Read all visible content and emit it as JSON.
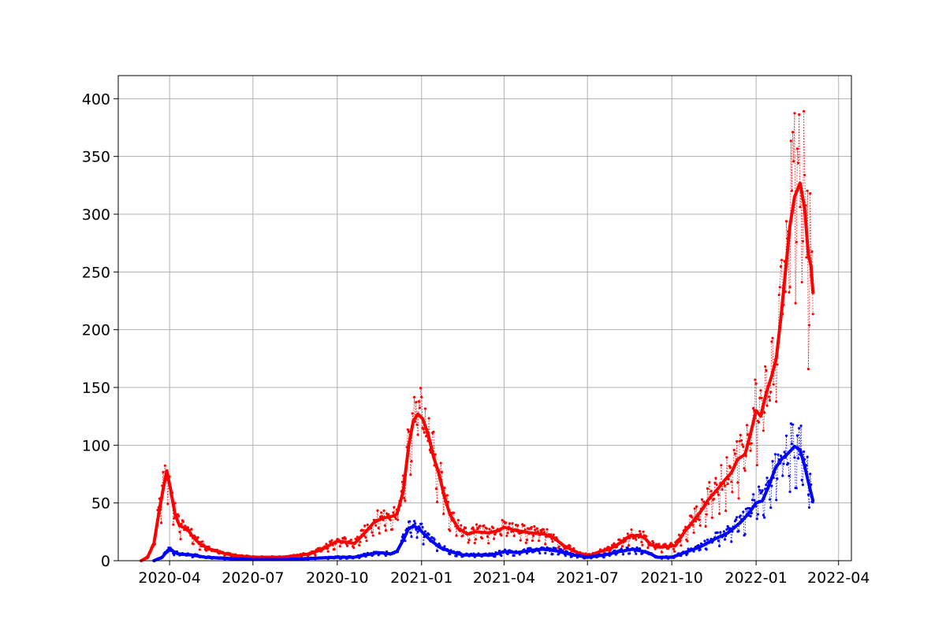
{
  "chart_data": {
    "type": "line",
    "title": "",
    "xlabel": "",
    "ylabel": "",
    "x_axis": {
      "kind": "date",
      "range": [
        "2020-02-05",
        "2022-04-15"
      ],
      "ticks": [
        "2020-04-01",
        "2020-07-01",
        "2020-10-01",
        "2021-01-01",
        "2021-04-01",
        "2021-07-01",
        "2021-10-01",
        "2022-01-01",
        "2022-04-01"
      ],
      "tick_labels": [
        "2020-04",
        "2020-07",
        "2020-10",
        "2021-01",
        "2021-04",
        "2021-07",
        "2021-10",
        "2022-01",
        "2022-04"
      ]
    },
    "y_axis": {
      "range": [
        0,
        420
      ],
      "ticks": [
        0,
        50,
        100,
        150,
        200,
        250,
        300,
        350,
        400
      ],
      "tick_labels": [
        "0",
        "50",
        "100",
        "150",
        "200",
        "250",
        "300",
        "350",
        "400"
      ]
    },
    "grid": true,
    "legend": "none",
    "colors": {
      "series_a": "#ff0000",
      "series_b": "#0000ff",
      "grid": "#b0b0b0"
    },
    "series": [
      {
        "color": "#ff0000",
        "style": "daily values with small dot markers and dotted connecting line, plus thick smoothed line",
        "points": [
          [
            "2020-03-01",
            0
          ],
          [
            "2020-03-08",
            3
          ],
          [
            "2020-03-15",
            15
          ],
          [
            "2020-03-20",
            40
          ],
          [
            "2020-03-25",
            62
          ],
          [
            "2020-03-29",
            78
          ],
          [
            "2020-04-02",
            62
          ],
          [
            "2020-04-07",
            40
          ],
          [
            "2020-04-12",
            30
          ],
          [
            "2020-04-20",
            28
          ],
          [
            "2020-04-27",
            20
          ],
          [
            "2020-05-05",
            14
          ],
          [
            "2020-05-15",
            10
          ],
          [
            "2020-06-01",
            6
          ],
          [
            "2020-06-15",
            4
          ],
          [
            "2020-07-01",
            3
          ],
          [
            "2020-07-15",
            3
          ],
          [
            "2020-08-01",
            3
          ],
          [
            "2020-08-15",
            4
          ],
          [
            "2020-09-01",
            6
          ],
          [
            "2020-09-15",
            10
          ],
          [
            "2020-10-01",
            17
          ],
          [
            "2020-10-10",
            16
          ],
          [
            "2020-10-20",
            15
          ],
          [
            "2020-11-01",
            25
          ],
          [
            "2020-11-10",
            33
          ],
          [
            "2020-11-20",
            37
          ],
          [
            "2020-11-28",
            38
          ],
          [
            "2020-12-05",
            40
          ],
          [
            "2020-12-12",
            60
          ],
          [
            "2020-12-18",
            100
          ],
          [
            "2020-12-23",
            121
          ],
          [
            "2020-12-28",
            127
          ],
          [
            "2021-01-02",
            123
          ],
          [
            "2021-01-08",
            110
          ],
          [
            "2021-01-14",
            90
          ],
          [
            "2021-01-20",
            75
          ],
          [
            "2021-01-26",
            55
          ],
          [
            "2021-02-01",
            40
          ],
          [
            "2021-02-10",
            28
          ],
          [
            "2021-02-20",
            23
          ],
          [
            "2021-03-01",
            25
          ],
          [
            "2021-03-15",
            24
          ],
          [
            "2021-03-25",
            26
          ],
          [
            "2021-04-01",
            29
          ],
          [
            "2021-04-15",
            26
          ],
          [
            "2021-05-01",
            24
          ],
          [
            "2021-05-15",
            23
          ],
          [
            "2021-05-25",
            20
          ],
          [
            "2021-06-05",
            13
          ],
          [
            "2021-06-15",
            9
          ],
          [
            "2021-06-25",
            5
          ],
          [
            "2021-07-05",
            5
          ],
          [
            "2021-07-15",
            8
          ],
          [
            "2021-07-25",
            10
          ],
          [
            "2021-08-05",
            15
          ],
          [
            "2021-08-15",
            21
          ],
          [
            "2021-08-25",
            22
          ],
          [
            "2021-09-01",
            20
          ],
          [
            "2021-09-08",
            14
          ],
          [
            "2021-09-15",
            12
          ],
          [
            "2021-09-25",
            12
          ],
          [
            "2021-10-05",
            13
          ],
          [
            "2021-10-15",
            25
          ],
          [
            "2021-10-25",
            35
          ],
          [
            "2021-11-01",
            42
          ],
          [
            "2021-11-10",
            53
          ],
          [
            "2021-11-20",
            62
          ],
          [
            "2021-11-28",
            70
          ],
          [
            "2021-12-05",
            76
          ],
          [
            "2021-12-12",
            88
          ],
          [
            "2021-12-20",
            92
          ],
          [
            "2021-12-26",
            110
          ],
          [
            "2022-01-01",
            130
          ],
          [
            "2022-01-06",
            125
          ],
          [
            "2022-01-12",
            145
          ],
          [
            "2022-01-18",
            160
          ],
          [
            "2022-01-23",
            175
          ],
          [
            "2022-01-28",
            210
          ],
          [
            "2022-02-02",
            250
          ],
          [
            "2022-02-07",
            290
          ],
          [
            "2022-02-12",
            315
          ],
          [
            "2022-02-18",
            327
          ],
          [
            "2022-02-23",
            305
          ],
          [
            "2022-02-27",
            265
          ],
          [
            "2022-03-02",
            255
          ],
          [
            "2022-03-04",
            232
          ]
        ]
      },
      {
        "color": "#0000ff",
        "style": "daily values with small dot markers and dotted connecting line, plus thick smoothed line",
        "points": [
          [
            "2020-03-15",
            0
          ],
          [
            "2020-03-24",
            3
          ],
          [
            "2020-03-30",
            9
          ],
          [
            "2020-04-03",
            9
          ],
          [
            "2020-04-10",
            6
          ],
          [
            "2020-04-25",
            5
          ],
          [
            "2020-05-10",
            3
          ],
          [
            "2020-06-01",
            2
          ],
          [
            "2020-07-01",
            1
          ],
          [
            "2020-08-01",
            1
          ],
          [
            "2020-09-01",
            2
          ],
          [
            "2020-10-01",
            3
          ],
          [
            "2020-10-20",
            3
          ],
          [
            "2020-11-01",
            5
          ],
          [
            "2020-11-15",
            7
          ],
          [
            "2020-11-28",
            6
          ],
          [
            "2020-12-05",
            8
          ],
          [
            "2020-12-12",
            18
          ],
          [
            "2020-12-18",
            28
          ],
          [
            "2020-12-24",
            30
          ],
          [
            "2020-12-30",
            27
          ],
          [
            "2021-01-05",
            22
          ],
          [
            "2021-01-12",
            17
          ],
          [
            "2021-01-20",
            12
          ],
          [
            "2021-02-01",
            8
          ],
          [
            "2021-02-15",
            5
          ],
          [
            "2021-03-01",
            5
          ],
          [
            "2021-03-20",
            5
          ],
          [
            "2021-04-01",
            8
          ],
          [
            "2021-04-15",
            7
          ],
          [
            "2021-05-01",
            9
          ],
          [
            "2021-05-15",
            10
          ],
          [
            "2021-06-01",
            8
          ],
          [
            "2021-06-15",
            5
          ],
          [
            "2021-07-01",
            3
          ],
          [
            "2021-07-20",
            5
          ],
          [
            "2021-08-05",
            8
          ],
          [
            "2021-08-20",
            10
          ],
          [
            "2021-09-05",
            7
          ],
          [
            "2021-09-15",
            3
          ],
          [
            "2021-10-01",
            3
          ],
          [
            "2021-10-15",
            7
          ],
          [
            "2021-11-01",
            12
          ],
          [
            "2021-11-15",
            18
          ],
          [
            "2021-12-01",
            24
          ],
          [
            "2021-12-15",
            33
          ],
          [
            "2021-12-25",
            42
          ],
          [
            "2022-01-01",
            50
          ],
          [
            "2022-01-08",
            52
          ],
          [
            "2022-01-15",
            65
          ],
          [
            "2022-01-22",
            80
          ],
          [
            "2022-01-29",
            88
          ],
          [
            "2022-02-05",
            93
          ],
          [
            "2022-02-12",
            99
          ],
          [
            "2022-02-18",
            96
          ],
          [
            "2022-02-23",
            82
          ],
          [
            "2022-02-28",
            65
          ],
          [
            "2022-03-04",
            52
          ]
        ]
      }
    ]
  }
}
